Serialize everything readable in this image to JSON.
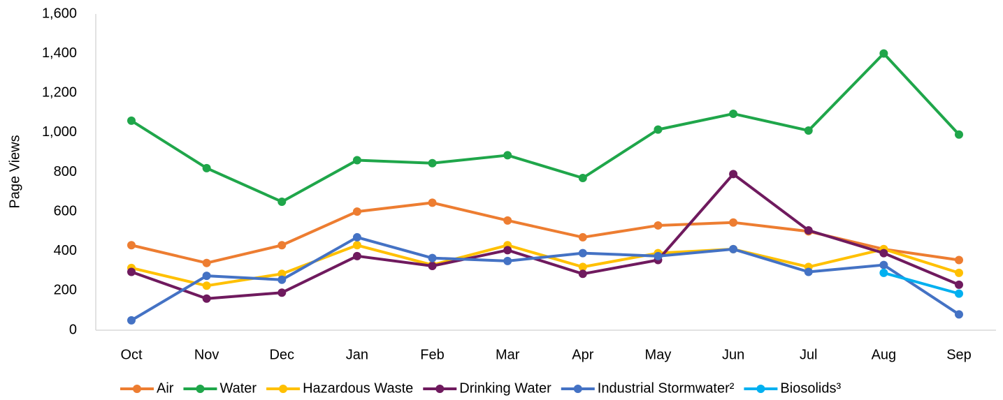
{
  "chart_data": {
    "type": "line",
    "y_label": "Page Views",
    "categories": [
      "Oct",
      "Nov",
      "Dec",
      "Jan",
      "Feb",
      "Mar",
      "Apr",
      "May",
      "Jun",
      "Jul",
      "Aug",
      "Sep"
    ],
    "series": [
      {
        "name": "Air",
        "color": "#ed7d31",
        "values": [
          430,
          340,
          430,
          600,
          645,
          555,
          470,
          530,
          545,
          500,
          410,
          355
        ]
      },
      {
        "name": "Water",
        "color": "#1fa64a",
        "values": [
          1060,
          820,
          650,
          860,
          845,
          885,
          770,
          1015,
          1095,
          1010,
          1400,
          990
        ]
      },
      {
        "name": "Hazardous Waste",
        "color": "#ffc000",
        "values": [
          315,
          225,
          285,
          430,
          330,
          430,
          320,
          390,
          410,
          320,
          410,
          290
        ]
      },
      {
        "name": "Drinking Water",
        "color": "#6f1a5e",
        "values": [
          295,
          160,
          190,
          375,
          325,
          405,
          285,
          355,
          790,
          505,
          390,
          230
        ]
      },
      {
        "name": "Industrial Stormwater²",
        "color": "#4472c4",
        "values": [
          50,
          275,
          255,
          470,
          365,
          350,
          390,
          375,
          410,
          295,
          330,
          80
        ]
      },
      {
        "name": "Biosolids³",
        "color": "#00b0f0",
        "values": [
          null,
          null,
          null,
          null,
          null,
          null,
          null,
          null,
          null,
          null,
          290,
          185
        ]
      }
    ],
    "ylim": [
      0,
      1600
    ],
    "yticks": [
      0,
      {
        "value": 200,
        "label": "200"
      },
      400,
      600,
      800,
      {
        "value": 1000,
        "label": "1,000"
      },
      {
        "value": 1200,
        "label": "1,200"
      },
      {
        "value": 1400,
        "label": "1,400"
      },
      {
        "value": 1600,
        "label": "1,600"
      }
    ],
    "grid": false,
    "legend": "bottom"
  }
}
